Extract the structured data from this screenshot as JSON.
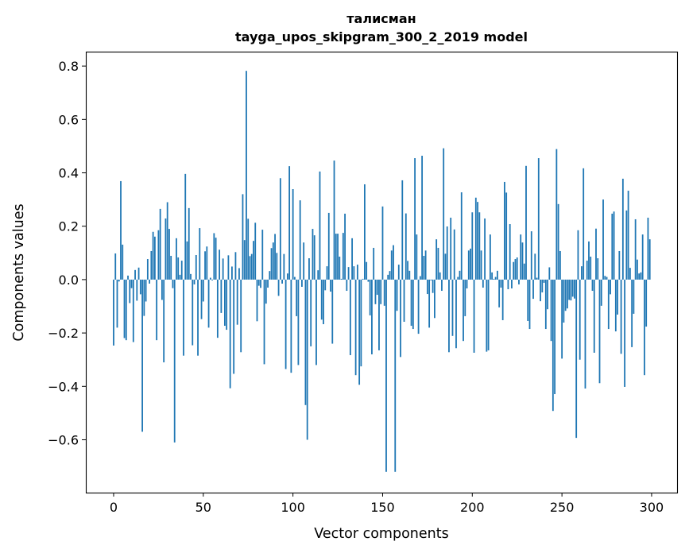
{
  "chart_data": {
    "type": "bar",
    "title": "талисман",
    "subtitle": "tayga_upos_skipgram_300_2_2019 model",
    "xlabel": "Vector components",
    "ylabel": "Components values",
    "xlim": [
      -15.5,
      314.2
    ],
    "ylim": [
      -0.798,
      0.854
    ],
    "xticks": [
      0,
      50,
      100,
      150,
      200,
      250,
      300
    ],
    "yticks": [
      -0.6,
      -0.4,
      -0.2,
      0.0,
      0.2,
      0.4,
      0.6,
      0.8
    ],
    "ytick_labels": [
      "−0.6",
      "−0.4",
      "−0.2",
      "0.0",
      "0.2",
      "0.4",
      "0.6",
      "0.8"
    ],
    "xtick_labels": [
      "0",
      "50",
      "100",
      "150",
      "200",
      "250",
      "300"
    ],
    "bar_color": "#1f77b4",
    "grid": false,
    "values": [
      -0.247,
      0.098,
      -0.18,
      -0.007,
      0.369,
      0.131,
      -0.219,
      -0.227,
      0.015,
      -0.088,
      -0.032,
      -0.234,
      0.036,
      -0.079,
      0.045,
      -0.055,
      -0.57,
      -0.136,
      -0.082,
      0.077,
      -0.015,
      0.107,
      0.179,
      0.161,
      -0.227,
      0.185,
      0.265,
      -0.076,
      -0.31,
      0.229,
      0.29,
      0.19,
      0.089,
      -0.032,
      -0.61,
      0.155,
      0.083,
      0.018,
      0.071,
      -0.285,
      0.396,
      0.143,
      0.268,
      0.021,
      -0.246,
      -0.018,
      0.092,
      -0.285,
      0.193,
      -0.148,
      -0.082,
      0.106,
      0.124,
      -0.18,
      0.007,
      -0.003,
      0.174,
      0.157,
      -0.218,
      0.112,
      -0.125,
      0.079,
      -0.173,
      -0.188,
      0.091,
      -0.407,
      0.049,
      -0.353,
      0.103,
      -0.169,
      0.043,
      -0.272,
      0.32,
      0.148,
      0.782,
      0.228,
      0.088,
      0.096,
      0.145,
      0.213,
      -0.156,
      -0.023,
      -0.031,
      0.187,
      -0.317,
      -0.09,
      -0.03,
      0.032,
      0.118,
      0.139,
      0.171,
      0.1,
      -0.061,
      0.38,
      -0.015,
      0.096,
      -0.335,
      0.023,
      0.425,
      -0.349,
      0.339,
      0.01,
      -0.137,
      -0.32,
      0.297,
      -0.027,
      0.139,
      -0.47,
      -0.6,
      0.08,
      -0.25,
      0.19,
      0.166,
      -0.32,
      0.035,
      0.405,
      -0.15,
      -0.167,
      -0.04,
      0.05,
      0.25,
      -0.045,
      -0.24,
      0.446,
      0.172,
      0.172,
      0.086,
      0.003,
      0.175,
      0.247,
      -0.042,
      0.047,
      -0.283,
      0.155,
      0.05,
      -0.358,
      0.056,
      -0.394,
      -0.325,
      0.003,
      0.357,
      0.066,
      -0.008,
      -0.134,
      -0.28,
      0.119,
      -0.092,
      -0.057,
      -0.265,
      -0.092,
      0.274,
      -0.098,
      -0.72,
      0.018,
      0.032,
      0.109,
      0.129,
      -0.72,
      -0.117,
      0.056,
      -0.29,
      0.372,
      -0.158,
      0.248,
      0.07,
      0.033,
      -0.173,
      -0.185,
      0.455,
      0.169,
      -0.203,
      0.013,
      0.464,
      0.089,
      0.109,
      -0.054,
      -0.18,
      -0.003,
      -0.05,
      -0.144,
      0.151,
      0.119,
      0.027,
      -0.042,
      0.492,
      0.097,
      0.199,
      -0.272,
      0.232,
      -0.211,
      0.188,
      -0.257,
      0.01,
      0.033,
      0.327,
      -0.23,
      -0.137,
      -0.033,
      0.109,
      0.116,
      0.252,
      -0.274,
      0.307,
      0.291,
      0.252,
      0.109,
      -0.03,
      0.229,
      -0.27,
      -0.265,
      0.169,
      0.027,
      0.003,
      0.01,
      0.033,
      -0.104,
      -0.03,
      -0.152,
      0.366,
      0.326,
      -0.036,
      0.208,
      -0.033,
      0.066,
      0.077,
      0.083,
      -0.018,
      0.169,
      0.139,
      0.06,
      0.426,
      -0.155,
      -0.185,
      0.181,
      -0.072,
      0.097,
      0.007,
      0.455,
      -0.081,
      -0.048,
      -0.012,
      -0.185,
      -0.111,
      0.046,
      -0.23,
      -0.492,
      -0.429,
      0.489,
      0.283,
      0.107,
      -0.296,
      -0.161,
      -0.117,
      -0.108,
      -0.076,
      -0.078,
      -0.064,
      -0.071,
      -0.593,
      0.185,
      -0.3,
      0.05,
      0.417,
      -0.408,
      0.071,
      0.143,
      0.086,
      -0.042,
      -0.274,
      0.191,
      0.08,
      -0.388,
      -0.098,
      0.3,
      0.014,
      0.01,
      -0.185,
      -0.055,
      0.247,
      0.255,
      -0.194,
      -0.131,
      0.107,
      -0.278,
      0.378,
      -0.402,
      0.259,
      0.333,
      0.044,
      -0.253,
      -0.128,
      0.226,
      0.075,
      0.023,
      0.027,
      0.169,
      -0.358,
      -0.176,
      0.232,
      0.151
    ]
  }
}
